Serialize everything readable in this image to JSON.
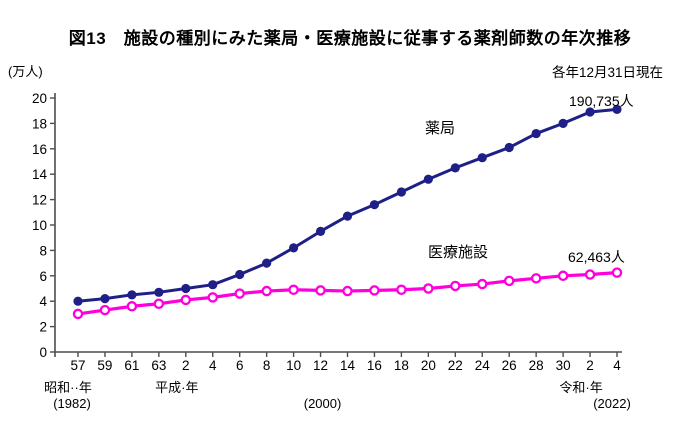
{
  "header": {
    "title": "図13　施設の種別にみた薬局・医療施設に従事する薬剤師数の年次推移",
    "unit_label": "(万人)",
    "date_note": "各年12月31日現在"
  },
  "chart_data": {
    "type": "line",
    "title": "施設の種別にみた薬局・医療施設に従事する薬剤師数の年次推移",
    "ylabel": "(万人)",
    "ylim": [
      0,
      20
    ],
    "y_tick_step": 2,
    "grid": false,
    "legend_position": "inline-labels",
    "x_tick_labels": [
      "57",
      "59",
      "61",
      "63",
      "2",
      "4",
      "6",
      "8",
      "10",
      "12",
      "14",
      "16",
      "18",
      "20",
      "22",
      "24",
      "26",
      "28",
      "30",
      "2",
      "4"
    ],
    "era_labels": [
      {
        "text": "昭和··年",
        "tick": 0,
        "dx": -10,
        "row": 0
      },
      {
        "text": "(1982)",
        "tick": 0,
        "dx": -6,
        "row": 1
      },
      {
        "text": "平成·年",
        "tick": 4,
        "dx": -9,
        "row": 0
      },
      {
        "text": "(2000)",
        "tick": 9,
        "dx": 2,
        "row": 1
      },
      {
        "text": "令和·年",
        "tick": 19,
        "dx": -9,
        "row": 0
      },
      {
        "text": "(2022)",
        "tick": 20,
        "dx": -5,
        "row": 1
      }
    ],
    "series": [
      {
        "name": "薬局",
        "color": "#1e2088",
        "marker": "filled-circle",
        "end_label": "190,735人",
        "end_value_persons": "190,735",
        "values": [
          4.0,
          4.2,
          4.5,
          4.7,
          5.0,
          5.3,
          6.1,
          7.0,
          8.2,
          9.5,
          10.7,
          11.6,
          12.6,
          13.6,
          14.5,
          15.3,
          16.1,
          17.2,
          18.0,
          18.9,
          19.1
        ]
      },
      {
        "name": "医療施設",
        "color": "#ff00dd",
        "marker": "open-circle",
        "end_label": "62,463人",
        "end_value_persons": "62,463",
        "values": [
          3.0,
          3.3,
          3.6,
          3.8,
          4.1,
          4.3,
          4.6,
          4.8,
          4.9,
          4.85,
          4.8,
          4.85,
          4.9,
          5.0,
          5.2,
          5.35,
          5.6,
          5.8,
          6.0,
          6.1,
          6.25
        ]
      }
    ],
    "axis_color": "#4d4d4d"
  }
}
